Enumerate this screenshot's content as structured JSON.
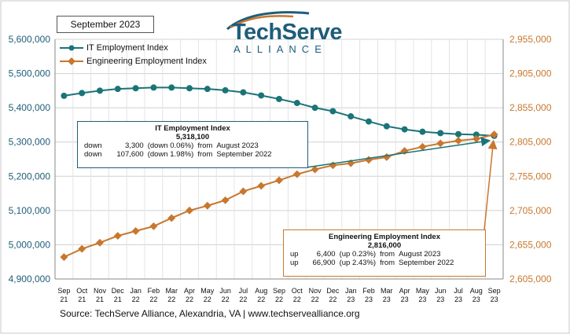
{
  "period_label": "September 2023",
  "logo": {
    "word": "TechServe",
    "sub": "ALLIANCE"
  },
  "legend": {
    "it": "IT Employment Index",
    "eng": "Engineering Employment Index"
  },
  "callout_it": {
    "title": "IT Employment Index",
    "value": "5,318,100",
    "rows": [
      {
        "dir": "down",
        "amount": "3,300",
        "pct": "(down 0.06%)",
        "from": "from",
        "ref": "August 2023"
      },
      {
        "dir": "down",
        "amount": "107,600",
        "pct": "(down 1.98%)",
        "from": "from",
        "ref": "September 2022"
      }
    ]
  },
  "callout_eng": {
    "title": "Engineering Employment Index",
    "value": "2,816,000",
    "rows": [
      {
        "dir": "up",
        "amount": "6,400",
        "pct": "(up 0.23%)",
        "from": "from",
        "ref": "August 2023"
      },
      {
        "dir": "up",
        "amount": "66,900",
        "pct": "(up 2.43%)",
        "from": "from",
        "ref": "September 2022"
      }
    ]
  },
  "source": "Source: TechServe Alliance, Alexandria, VA | www.techservealliance.org",
  "colors": {
    "it": "#1a7478",
    "eng": "#c8772e",
    "axis_left": "#1e5d7a",
    "axis_right": "#c8772e",
    "grid": "#d0d0d0"
  },
  "chart_data": {
    "type": "line",
    "x": [
      "Sep 21",
      "Oct 21",
      "Nov 21",
      "Dec 21",
      "Jan 22",
      "Feb 22",
      "Mar 22",
      "Apr 22",
      "May 22",
      "Jun 22",
      "Jul 22",
      "Aug 22",
      "Sep 22",
      "Oct 22",
      "Nov 22",
      "Dec 22",
      "Jan 23",
      "Feb 23",
      "Mar 23",
      "Apr 23",
      "May 23",
      "Jun 23",
      "Jul 23",
      "Aug 23",
      "Sep 23"
    ],
    "x_tick_month": [
      "Sep",
      "Oct",
      "Nov",
      "Dec",
      "Jan",
      "Feb",
      "Mar",
      "Apr",
      "May",
      "Jun",
      "Jul",
      "Aug",
      "Sep",
      "Oct",
      "Nov",
      "Dec",
      "Jan",
      "Feb",
      "Mar",
      "Apr",
      "May",
      "Jun",
      "Jul",
      "Aug",
      "Sep"
    ],
    "x_tick_year": [
      "21",
      "21",
      "21",
      "21",
      "22",
      "22",
      "22",
      "22",
      "22",
      "22",
      "22",
      "22",
      "22",
      "22",
      "22",
      "22",
      "23",
      "23",
      "23",
      "23",
      "23",
      "23",
      "23",
      "23",
      "23"
    ],
    "series": [
      {
        "name": "IT Employment Index",
        "axis": "left",
        "values": [
          5435000,
          5443000,
          5450000,
          5455000,
          5457000,
          5459000,
          5459000,
          5457000,
          5455000,
          5451000,
          5445000,
          5436000,
          5425700,
          5414000,
          5400000,
          5390000,
          5375000,
          5360000,
          5346000,
          5337000,
          5330000,
          5326000,
          5323000,
          5321400,
          5318100
        ]
      },
      {
        "name": "Engineering Employment Index",
        "axis": "right",
        "values": [
          2637000,
          2649000,
          2658000,
          2668000,
          2675000,
          2682000,
          2694000,
          2705000,
          2712000,
          2720000,
          2733000,
          2741000,
          2749100,
          2758000,
          2765000,
          2771000,
          2774000,
          2779000,
          2783000,
          2792000,
          2798000,
          2803000,
          2807000,
          2809600,
          2816000
        ]
      }
    ],
    "y_left": {
      "min": 4900000,
      "max": 5600000,
      "ticks": [
        "4,900,000",
        "5,000,000",
        "5,100,000",
        "5,200,000",
        "5,300,000",
        "5,400,000",
        "5,500,000",
        "5,600,000"
      ]
    },
    "y_right": {
      "min": 2605000,
      "max": 2955000,
      "ticks": [
        "2,605,000",
        "2,655,000",
        "2,705,000",
        "2,755,000",
        "2,805,000",
        "2,855,000",
        "2,905,000",
        "2,955,000"
      ]
    },
    "grid": true,
    "legend_position": "top-left"
  }
}
